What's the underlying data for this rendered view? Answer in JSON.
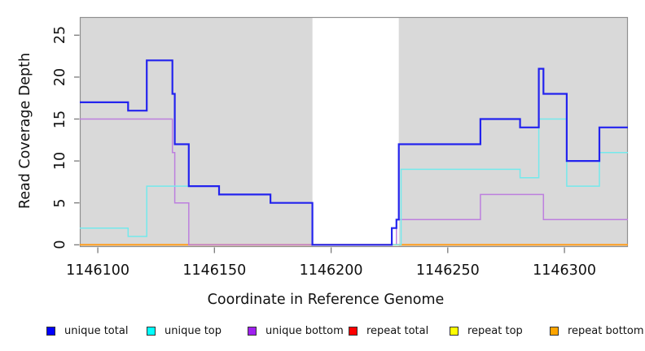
{
  "chart_data": {
    "type": "line",
    "step": true,
    "title": "",
    "xlabel": "Coordinate in Reference Genome",
    "ylabel": "Read Coverage Depth",
    "xlim": [
      1146092.3,
      1146327.2
    ],
    "ylim": [
      0,
      27.2
    ],
    "x_ticks": [
      {
        "value": 1146100,
        "label": "1146100"
      },
      {
        "value": 1146150,
        "label": "1146150"
      },
      {
        "value": 1146200,
        "label": "1146200"
      },
      {
        "value": 1146250,
        "label": "1146250"
      },
      {
        "value": 1146300,
        "label": "1146300"
      }
    ],
    "y_ticks": [
      {
        "value": 0,
        "label": "0"
      },
      {
        "value": 5,
        "label": "5"
      },
      {
        "value": 10,
        "label": "10"
      },
      {
        "value": 15,
        "label": "15"
      },
      {
        "value": 20,
        "label": "20"
      },
      {
        "value": 25,
        "label": "25"
      }
    ],
    "plot_background": "#d9d9d9",
    "frame_color": "#8f8f8f",
    "tick_color": "#7a7a7a",
    "no_data_gap": {
      "x_start": 1146192,
      "x_end": 1146229,
      "fill": "#ffffff"
    },
    "grid": false,
    "legend_position": "bottom",
    "series": [
      {
        "name": "unique total",
        "line_color": "#2323ee",
        "swatch_color": "#0000ff",
        "line_width": 2.2,
        "z": 6,
        "points": [
          [
            1146092,
            17
          ],
          [
            1146113,
            16
          ],
          [
            1146121,
            22
          ],
          [
            1146132,
            18
          ],
          [
            1146133,
            12
          ],
          [
            1146139,
            7
          ],
          [
            1146152,
            6
          ],
          [
            1146174,
            5
          ],
          [
            1146192,
            0
          ],
          [
            1146226,
            2
          ],
          [
            1146228,
            3
          ],
          [
            1146229,
            12
          ],
          [
            1146264,
            15
          ],
          [
            1146281,
            14
          ],
          [
            1146289,
            21
          ],
          [
            1146291,
            18
          ],
          [
            1146301,
            10
          ],
          [
            1146315,
            14
          ]
        ]
      },
      {
        "name": "unique top",
        "line_color": "#74e9ec",
        "swatch_color": "#00ffff",
        "line_width": 1.5,
        "z": 5,
        "points": [
          [
            1146092,
            2
          ],
          [
            1146113,
            1
          ],
          [
            1146121,
            7
          ],
          [
            1146152,
            6
          ],
          [
            1146174,
            5
          ],
          [
            1146192,
            0
          ],
          [
            1146230,
            9
          ],
          [
            1146281,
            8
          ],
          [
            1146289,
            15
          ],
          [
            1146301,
            7
          ],
          [
            1146315,
            11
          ]
        ]
      },
      {
        "name": "unique bottom",
        "line_color": "#bd7fde",
        "swatch_color": "#a020f0",
        "line_width": 1.5,
        "z": 4,
        "points": [
          [
            1146092,
            15
          ],
          [
            1146132,
            11
          ],
          [
            1146133,
            5
          ],
          [
            1146139,
            0
          ],
          [
            1146228,
            3
          ],
          [
            1146264,
            6
          ],
          [
            1146291,
            3
          ]
        ]
      },
      {
        "name": "repeat total",
        "line_color": "#dd2222",
        "swatch_color": "#ff0000",
        "line_width": 1.5,
        "z": 1,
        "points": [
          [
            1146092,
            0
          ]
        ]
      },
      {
        "name": "repeat top",
        "line_color": "#eded2a",
        "swatch_color": "#ffff00",
        "line_width": 1.5,
        "z": 2,
        "points": [
          [
            1146092,
            0
          ]
        ]
      },
      {
        "name": "repeat bottom",
        "line_color": "#ff9e1e",
        "swatch_color": "#ffa500",
        "line_width": 2,
        "z": 3,
        "points": [
          [
            1146092,
            0
          ]
        ]
      }
    ]
  }
}
